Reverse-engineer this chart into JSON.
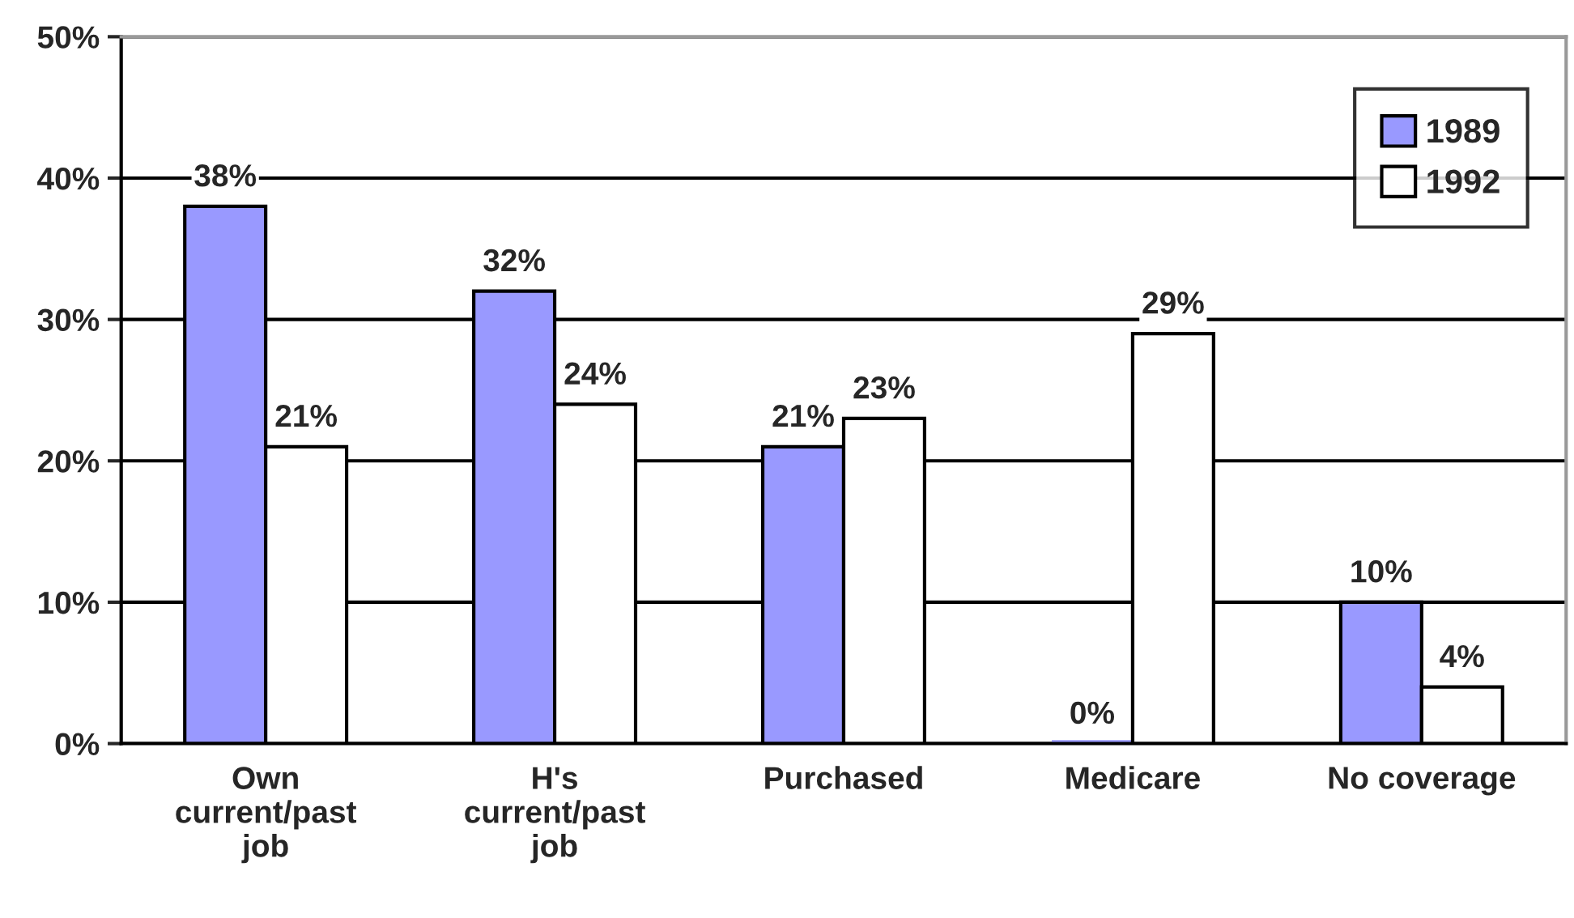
{
  "chart_data": {
    "type": "bar",
    "categories": [
      "Own\ncurrent/past\njob",
      "H's\ncurrent/past\njob",
      "Purchased",
      "Medicare",
      "No coverage"
    ],
    "series": [
      {
        "name": "1989",
        "color": "#9999ff",
        "values": [
          38,
          32,
          21,
          0,
          10
        ],
        "value_labels": [
          "38%",
          "32%",
          "21%",
          "0%",
          "10%"
        ]
      },
      {
        "name": "1992",
        "color": "#ffffff",
        "values": [
          21,
          24,
          23,
          29,
          4
        ],
        "value_labels": [
          "21%",
          "24%",
          "23%",
          "29%",
          "4%"
        ]
      }
    ],
    "ylim": [
      0,
      50
    ],
    "yticks": [
      {
        "value": 0,
        "label": "0%"
      },
      {
        "value": 10,
        "label": "10%"
      },
      {
        "value": 20,
        "label": "20%"
      },
      {
        "value": 30,
        "label": "30%"
      },
      {
        "value": 40,
        "label": "40%"
      },
      {
        "value": 50,
        "label": "50%"
      }
    ],
    "grid": "y",
    "legend": "top right"
  }
}
